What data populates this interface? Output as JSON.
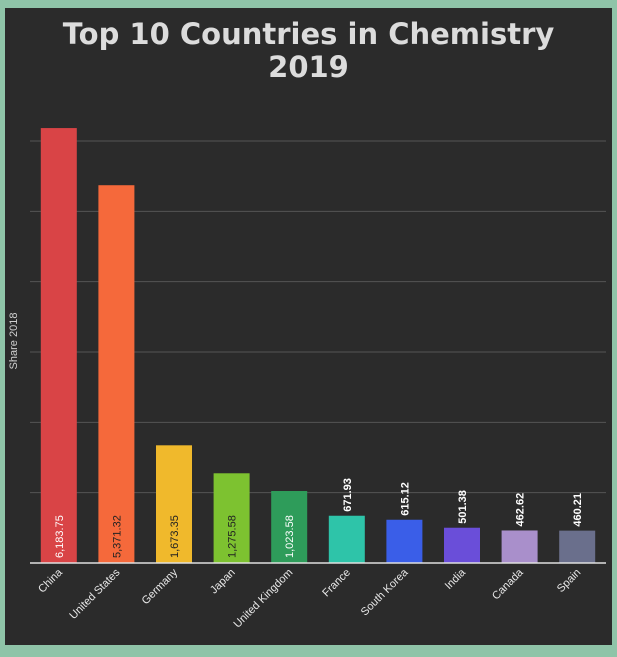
{
  "chart_data": {
    "type": "bar",
    "title_line1": "Top 10 Countries in Chemistry",
    "title_line2": "2019",
    "ylabel": "Share 2018",
    "xlabel": "",
    "ylim": [
      0,
      6000
    ],
    "grid": true,
    "legend": "none",
    "categories": [
      "China",
      "United States",
      "Germany",
      "Japan",
      "United Kingdom",
      "France",
      "South Korea",
      "India",
      "Canada",
      "Spain"
    ],
    "values": [
      6183.75,
      5371.32,
      1673.35,
      1275.58,
      1023.58,
      671.93,
      615.12,
      501.38,
      462.62,
      460.21
    ],
    "value_labels": [
      "6,183.75",
      "5,371.32",
      "1,673.35",
      "1,275.58",
      "1,023.58",
      "671.93",
      "615.12",
      "501.38",
      "462.62",
      "460.21"
    ],
    "colors": [
      "#d94446",
      "#f5693b",
      "#f0b92c",
      "#7dc230",
      "#2e9c5a",
      "#2ec4a9",
      "#3a5ee8",
      "#6a4ed9",
      "#a98fcb",
      "#6a6f8c"
    ]
  }
}
